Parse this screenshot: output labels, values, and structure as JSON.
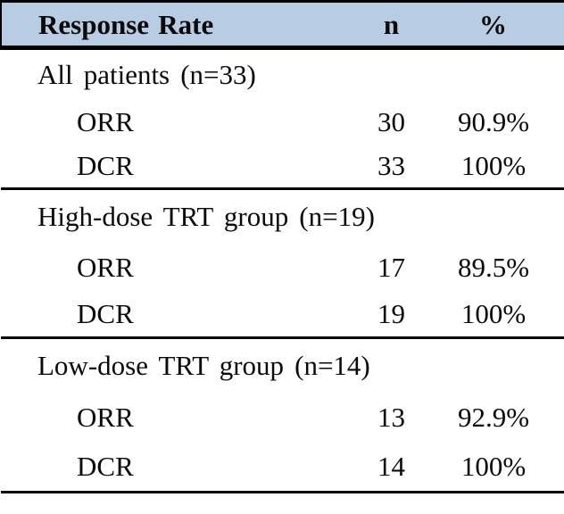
{
  "colors": {
    "header_bg": "#b8cce4",
    "border": "#000000"
  },
  "table": {
    "header": {
      "col1": "Response Rate",
      "col2": "n",
      "col3": "%"
    },
    "sections": [
      {
        "label": "All patients (n=33)",
        "rows": [
          {
            "measure": "ORR",
            "n": "30",
            "pct": "90.9%"
          },
          {
            "measure": "DCR",
            "n": "33",
            "pct": "100%"
          }
        ]
      },
      {
        "label": "High-dose TRT group (n=19)",
        "rows": [
          {
            "measure": "ORR",
            "n": "17",
            "pct": "89.5%"
          },
          {
            "measure": "DCR",
            "n": "19",
            "pct": "100%"
          }
        ]
      },
      {
        "label": "Low-dose TRT group (n=14)",
        "rows": [
          {
            "measure": "ORR",
            "n": "13",
            "pct": "92.9%"
          },
          {
            "measure": "DCR",
            "n": "14",
            "pct": "100%"
          }
        ]
      }
    ]
  },
  "chart_data": {
    "type": "table",
    "title": "Response Rate",
    "columns": [
      "Response Rate",
      "n",
      "%"
    ],
    "rows": [
      [
        "All patients (n=33)",
        null,
        null
      ],
      [
        "ORR",
        30,
        "90.9%"
      ],
      [
        "DCR",
        33,
        "100%"
      ],
      [
        "High-dose TRT group (n=19)",
        null,
        null
      ],
      [
        "ORR",
        17,
        "89.5%"
      ],
      [
        "DCR",
        19,
        "100%"
      ],
      [
        "Low-dose TRT group (n=14)",
        null,
        null
      ],
      [
        "ORR",
        13,
        "92.9%"
      ],
      [
        "DCR",
        14,
        "100%"
      ]
    ]
  }
}
